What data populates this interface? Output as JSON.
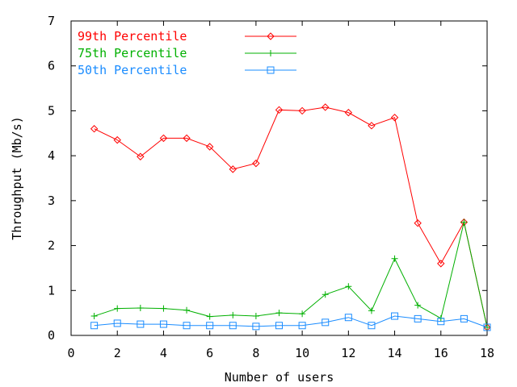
{
  "chart_data": {
    "type": "line",
    "xlabel": "Number of users",
    "ylabel": "Throughput (Mb/s)",
    "xlim": [
      0,
      18
    ],
    "ylim": [
      0,
      7
    ],
    "xticks": [
      0,
      2,
      4,
      6,
      8,
      10,
      12,
      14,
      16,
      18
    ],
    "yticks": [
      0,
      1,
      2,
      3,
      4,
      5,
      6,
      7
    ],
    "grid": false,
    "legend_position": "top-left",
    "series": [
      {
        "name": "99th Percentile",
        "color": "#ff0000",
        "marker": "diamond",
        "x": [
          1,
          2,
          3,
          4,
          5,
          6,
          7,
          8,
          9,
          10,
          11,
          12,
          13,
          14,
          15,
          16,
          17,
          18
        ],
        "y": [
          4.6,
          4.35,
          3.98,
          4.39,
          4.39,
          4.2,
          3.7,
          3.83,
          5.02,
          5.0,
          5.08,
          4.96,
          4.67,
          4.85,
          2.5,
          1.6,
          2.52,
          0.18
        ]
      },
      {
        "name": "75th Percentile",
        "color": "#00b000",
        "marker": "plus",
        "x": [
          1,
          2,
          3,
          4,
          5,
          6,
          7,
          8,
          9,
          10,
          11,
          12,
          13,
          14,
          15,
          16,
          17,
          18
        ],
        "y": [
          0.43,
          0.6,
          0.61,
          0.6,
          0.56,
          0.42,
          0.45,
          0.43,
          0.5,
          0.48,
          0.91,
          1.09,
          0.55,
          1.71,
          0.67,
          0.38,
          2.52,
          0.18
        ]
      },
      {
        "name": "50th Percentile",
        "color": "#1a8cff",
        "marker": "square",
        "x": [
          1,
          2,
          3,
          4,
          5,
          6,
          7,
          8,
          9,
          10,
          11,
          12,
          13,
          14,
          15,
          16,
          17,
          18
        ],
        "y": [
          0.22,
          0.27,
          0.25,
          0.25,
          0.22,
          0.22,
          0.22,
          0.2,
          0.22,
          0.22,
          0.29,
          0.4,
          0.22,
          0.43,
          0.37,
          0.31,
          0.37,
          0.18
        ]
      }
    ]
  }
}
